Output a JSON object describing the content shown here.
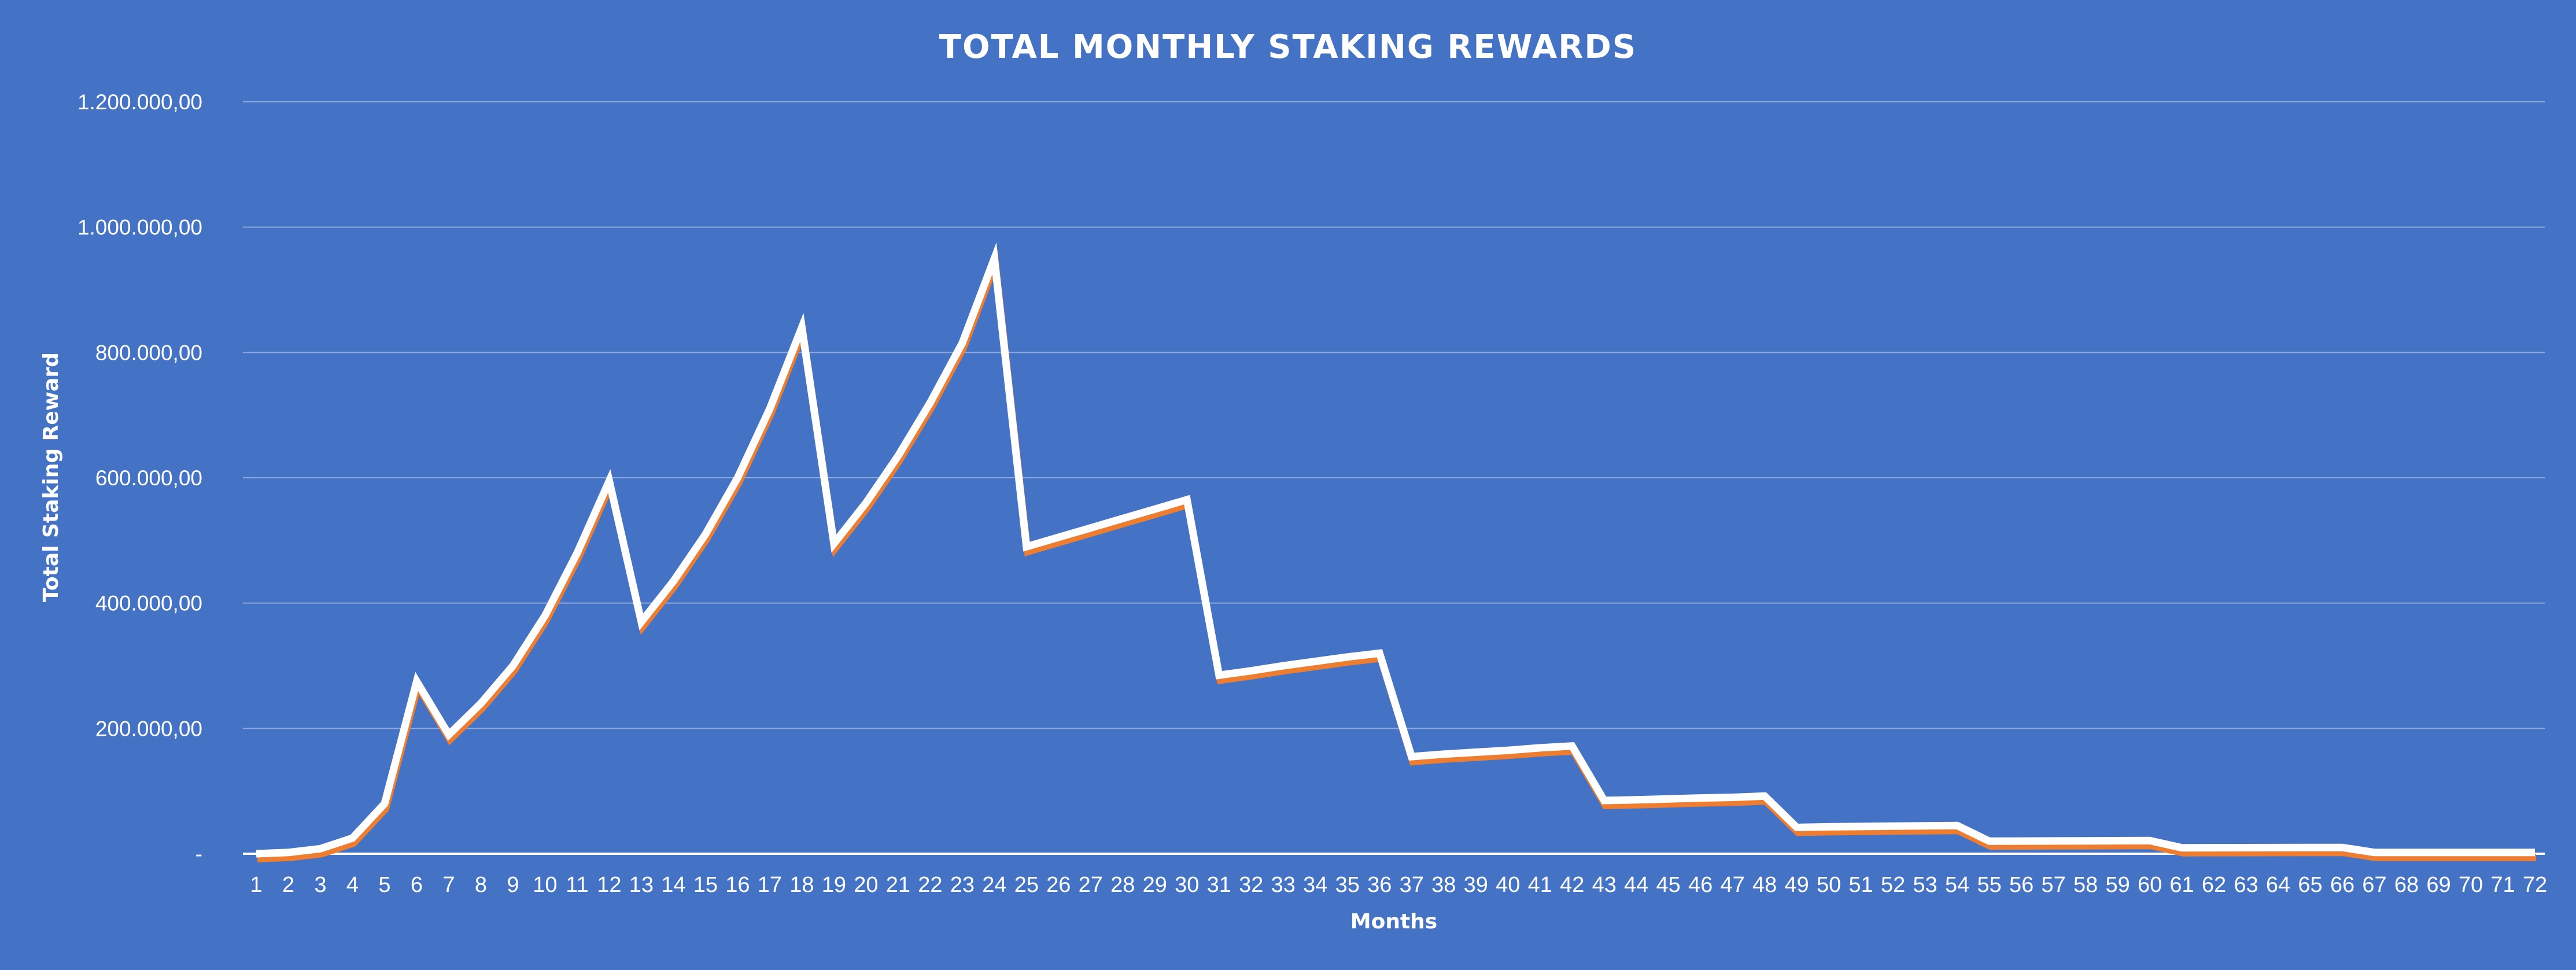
{
  "chart_data": {
    "type": "area",
    "title": "TOTAL MONTHLY STAKING REWARDS",
    "xlabel": "Months",
    "ylabel": "Total Staking Reward",
    "ylim": [
      0,
      1200000
    ],
    "yticks": [
      0,
      200000,
      400000,
      600000,
      800000,
      1000000,
      1200000
    ],
    "ytick_labels": [
      "-",
      "200.000,00",
      "400.000,00",
      "600.000,00",
      "800.000,00",
      "1.000.000,00",
      "1.200.000,00"
    ],
    "grid": true,
    "legend": "none",
    "categories": [
      1,
      2,
      3,
      4,
      5,
      6,
      7,
      8,
      9,
      10,
      11,
      12,
      13,
      14,
      15,
      16,
      17,
      18,
      19,
      20,
      21,
      22,
      23,
      24,
      25,
      26,
      27,
      28,
      29,
      30,
      31,
      32,
      33,
      34,
      35,
      36,
      37,
      38,
      39,
      40,
      41,
      42,
      43,
      44,
      45,
      46,
      47,
      48,
      49,
      50,
      51,
      52,
      53,
      54,
      55,
      56,
      57,
      58,
      59,
      60,
      61,
      62,
      63,
      64,
      65,
      66,
      67,
      68,
      69,
      70,
      71,
      72
    ],
    "values": [
      0,
      2000,
      8000,
      25000,
      80000,
      275000,
      190000,
      240000,
      300000,
      380000,
      480000,
      595000,
      370000,
      435000,
      510000,
      600000,
      710000,
      840000,
      495000,
      560000,
      635000,
      720000,
      815000,
      950000,
      490000,
      505000,
      520000,
      535000,
      550000,
      565000,
      285000,
      292000,
      300000,
      307000,
      314000,
      320000,
      155000,
      159000,
      162000,
      165000,
      169000,
      172000,
      85000,
      86000,
      87500,
      89000,
      90000,
      92000,
      42000,
      43000,
      43500,
      44000,
      44500,
      45000,
      20000,
      20200,
      20400,
      20600,
      20800,
      21000,
      9500,
      9600,
      9700,
      9800,
      9900,
      10000,
      2000,
      2000,
      2000,
      2000,
      2000,
      2000
    ],
    "colors": {
      "background": "#4472c4",
      "line": "#ffffff",
      "shadow": "#ed7d31",
      "gridline": "#8faadc"
    }
  }
}
